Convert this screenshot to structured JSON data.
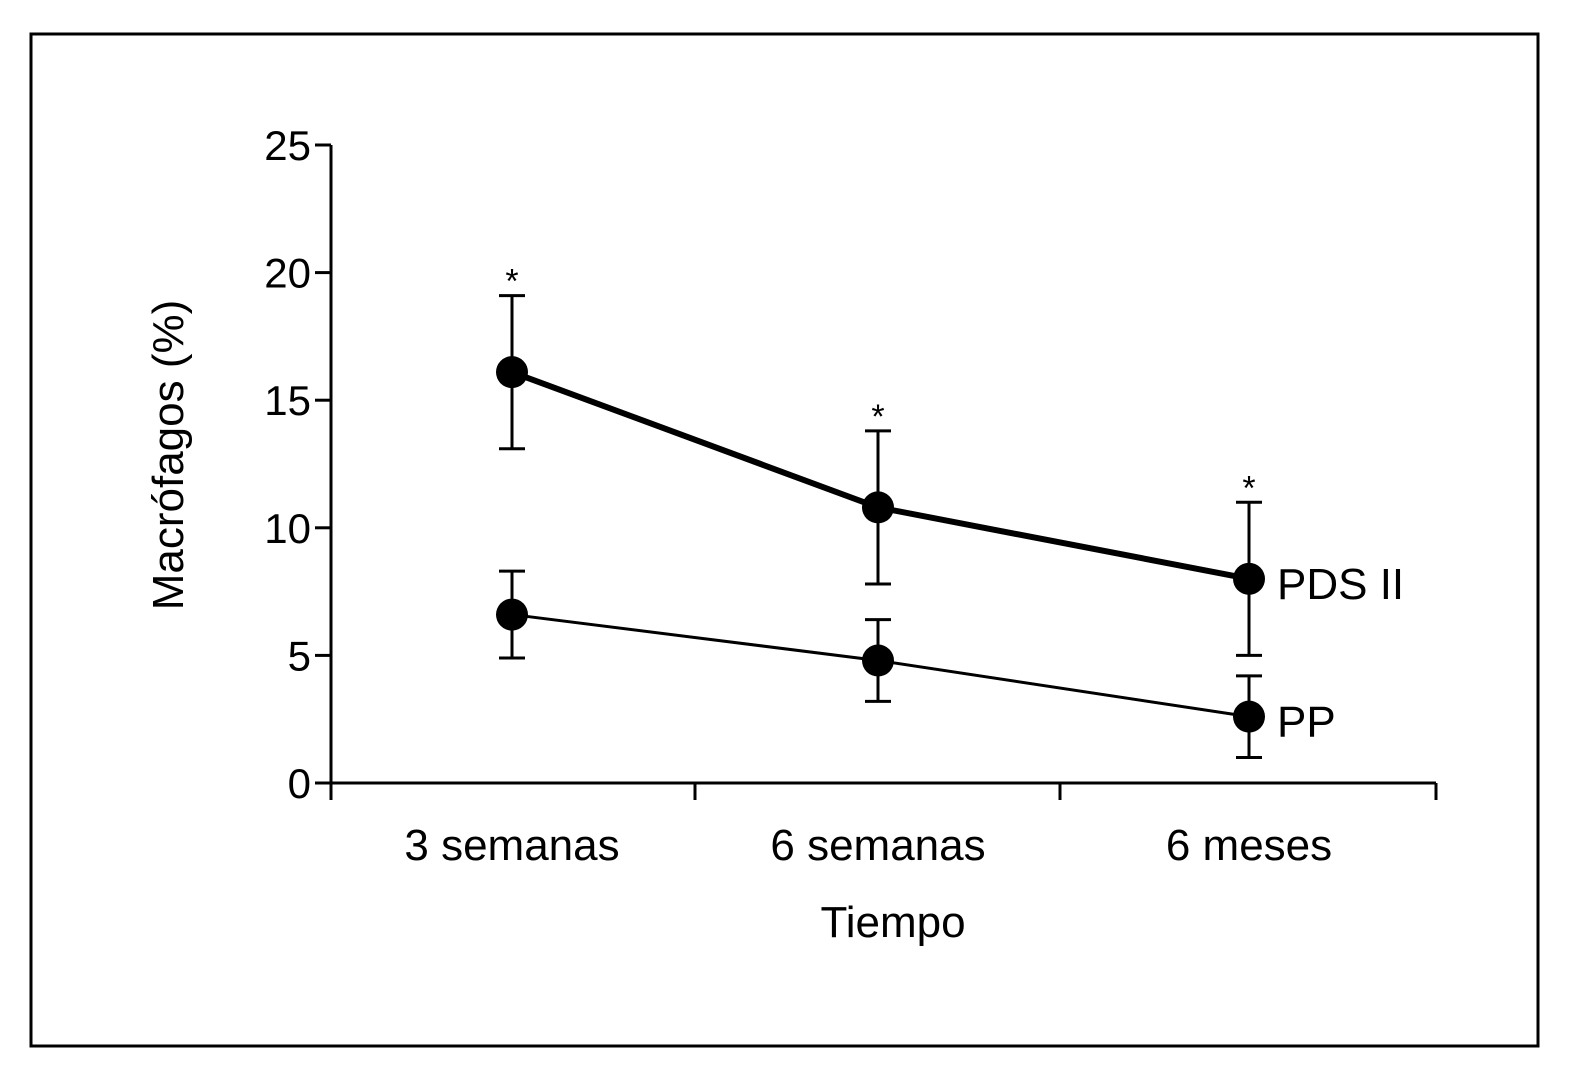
{
  "chart_data": {
    "type": "line",
    "title": "",
    "xlabel": "Tiempo",
    "ylabel": "Macrófagos (%)",
    "categories": [
      "3 semanas",
      "6 semanas",
      "6 meses"
    ],
    "ylim": [
      0,
      25
    ],
    "yticks": [
      "0",
      "5",
      "10",
      "15",
      "20",
      "25"
    ],
    "grid": false,
    "legend": "direct labels at right end of lines",
    "series": [
      {
        "name": "PDS II",
        "values": [
          16.1,
          10.8,
          8.0
        ],
        "error": [
          3.0,
          3.0,
          3.0
        ],
        "significance": [
          "*",
          "*",
          "*"
        ],
        "line": "thick"
      },
      {
        "name": "PP",
        "values": [
          6.6,
          4.8,
          2.6
        ],
        "error": [
          1.7,
          1.6,
          1.6
        ],
        "significance": [
          "",
          "",
          ""
        ],
        "line": "thin"
      }
    ],
    "colors": {
      "line": "#000000",
      "background": "#ffffff"
    }
  }
}
